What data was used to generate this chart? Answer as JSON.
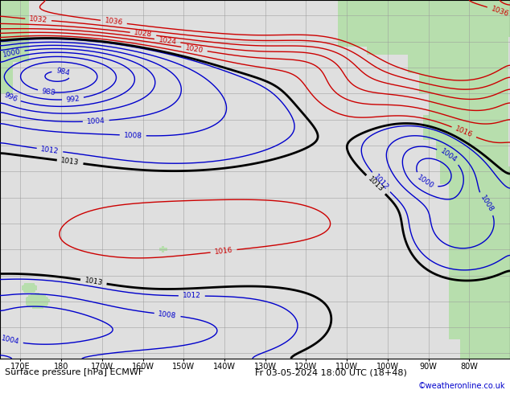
{
  "title": "Surface pressure [hPa] ECMWF",
  "date_label": "Fr 03-05-2024 18:00 UTC (18+48)",
  "copyright": "©weatheronline.co.uk",
  "bg_ocean": "#e0e0e0",
  "bg_land": "#b8ddb0",
  "grid_color": "#999999",
  "color_below": "#0000cc",
  "color_above": "#cc0000",
  "color_base": "#000000",
  "lon_min": 165,
  "lon_max": 290,
  "lat_min": -62,
  "lat_max": 76
}
